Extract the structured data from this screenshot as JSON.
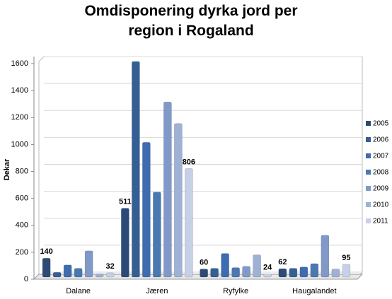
{
  "chart_data": {
    "type": "bar",
    "title": "Omdisponering dyrka jord per region i Rogaland",
    "y_label": "Dekar",
    "categories": [
      "Dalane",
      "Jæren",
      "Ryfylke",
      "Haugalandet"
    ],
    "series": [
      {
        "name": "2005",
        "color": "#2b4a78",
        "values": [
          140,
          511,
          60,
          62
        ],
        "data_labels": true
      },
      {
        "name": "2006",
        "color": "#345f95",
        "values": [
          35,
          1600,
          65,
          65
        ],
        "data_labels": false
      },
      {
        "name": "2007",
        "color": "#3d6cb0",
        "values": [
          90,
          1000,
          175,
          75
        ],
        "data_labels": false
      },
      {
        "name": "2008",
        "color": "#4a78b3",
        "values": [
          65,
          630,
          70,
          100
        ],
        "data_labels": false
      },
      {
        "name": "2009",
        "color": "#8099c8",
        "values": [
          195,
          1300,
          80,
          310
        ],
        "data_labels": false
      },
      {
        "name": "2010",
        "color": "#a0b1d6",
        "values": [
          25,
          1140,
          165,
          60
        ],
        "data_labels": false
      },
      {
        "name": "2011",
        "color": "#c6d0e6",
        "values": [
          32,
          806,
          24,
          95
        ],
        "data_labels": true
      }
    ],
    "ylim": [
      0,
      1600
    ],
    "yticks": [
      0,
      200,
      400,
      600,
      800,
      1000,
      1200,
      1400,
      1600
    ],
    "grid": true,
    "legend": "right"
  }
}
